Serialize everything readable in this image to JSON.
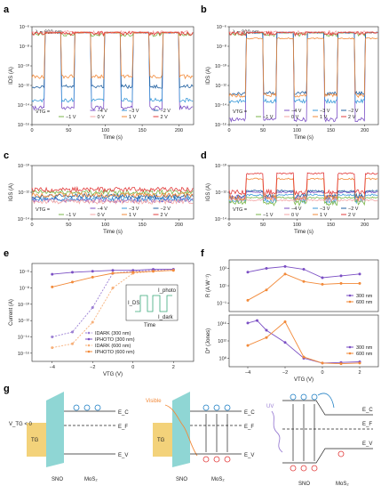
{
  "panels": {
    "a": {
      "label": "a",
      "annotation": "λ = 600 nm"
    },
    "b": {
      "label": "b",
      "annotation": "λ = 300 nm"
    },
    "c": {
      "label": "c"
    },
    "d": {
      "label": "d"
    },
    "e": {
      "label": "e"
    },
    "f": {
      "label": "f"
    },
    "g": {
      "label": "g"
    }
  },
  "chart_data": [
    {
      "panel": "a",
      "type": "line",
      "annotation": "λ = 600 nm",
      "xlabel": "Time (s)",
      "ylabel": "I_DS (A)",
      "xlim": [
        0,
        220
      ],
      "xticks": [
        "0",
        "50",
        "100",
        "150",
        "200"
      ],
      "yticks": [
        "10⁻¹⁶",
        "10⁻¹⁴",
        "10⁻¹²",
        "10⁻¹⁰",
        "10⁻⁸",
        "10⁻⁶"
      ],
      "ylim_exp": [
        -16,
        -6
      ],
      "legend_prefix": "V_TG =",
      "light_on_intervals_s": [
        [
          18,
          40
        ],
        [
          58,
          80
        ],
        [
          98,
          120
        ],
        [
          138,
          160
        ],
        [
          178,
          200
        ]
      ],
      "series": [
        {
          "name": "−4 V",
          "color": "#7b4fc4",
          "dark_log": -14.3,
          "light_log": -6.6
        },
        {
          "name": "−3 V",
          "color": "#3a9ad9",
          "dark_log": -13.5,
          "light_log": -6.6
        },
        {
          "name": "−2 V",
          "color": "#1f5fa0",
          "dark_log": -12.1,
          "light_log": -6.6
        },
        {
          "name": "−1 V",
          "color": "#7ab648",
          "dark_log": -6.8,
          "light_log": -6.6
        },
        {
          "name": "0 V",
          "color": "#f4a6a6",
          "dark_log": -6.6,
          "light_log": -6.55
        },
        {
          "name": "1 V",
          "color": "#f28a3a",
          "dark_log": -11.1,
          "light_log": -6.6
        },
        {
          "name": "2 V",
          "color": "#e23b3b",
          "dark_log": -6.7,
          "light_log": -6.6
        }
      ]
    },
    {
      "panel": "b",
      "type": "line",
      "annotation": "λ = 300 nm",
      "xlabel": "Time (s)",
      "ylabel": "I_DS (A)",
      "xlim": [
        0,
        220
      ],
      "xticks": [
        "0",
        "50",
        "100",
        "150",
        "200"
      ],
      "yticks": [
        "10⁻¹⁶",
        "10⁻¹⁴",
        "10⁻¹²",
        "10⁻¹⁰",
        "10⁻⁸",
        "10⁻⁶"
      ],
      "ylim_exp": [
        -16,
        -6
      ],
      "legend_prefix": "V_TG =",
      "light_on_intervals_s": [
        [
          25,
          50
        ],
        [
          70,
          95
        ],
        [
          115,
          140
        ],
        [
          160,
          185
        ],
        [
          200,
          220
        ]
      ],
      "series": [
        {
          "name": "−4 V",
          "color": "#7b4fc4",
          "dark_log": -15.5,
          "light_log": -6.6
        },
        {
          "name": "−3 V",
          "color": "#3a9ad9",
          "dark_log": -13.6,
          "light_log": -6.6
        },
        {
          "name": "−2 V",
          "color": "#1f5fa0",
          "dark_log": -12.8,
          "light_log": -6.6
        },
        {
          "name": "−1 V",
          "color": "#7ab648",
          "dark_log": -6.8,
          "light_log": -6.6
        },
        {
          "name": "0 V",
          "color": "#f4a6a6",
          "dark_log": -6.6,
          "light_log": -6.55
        },
        {
          "name": "1 V",
          "color": "#f28a3a",
          "dark_log": -13.0,
          "light_log": -7.2
        },
        {
          "name": "2 V",
          "color": "#e23b3b",
          "dark_log": -6.7,
          "light_log": -6.6
        }
      ]
    },
    {
      "panel": "c",
      "type": "line",
      "xlabel": "Time (s)",
      "ylabel": "I_GS (A)",
      "xlim": [
        0,
        220
      ],
      "xticks": [
        "0",
        "50",
        "100",
        "150",
        "200"
      ],
      "yticks": [
        "10⁻¹⁴",
        "10⁻¹²",
        "10⁻¹⁰"
      ],
      "ylim_exp": [
        -14,
        -10
      ],
      "legend_prefix": "V_TG =",
      "series": [
        {
          "name": "−4 V",
          "color": "#7b4fc4",
          "level_log": -12.6
        },
        {
          "name": "−3 V",
          "color": "#3a9ad9",
          "level_log": -12.5
        },
        {
          "name": "−2 V",
          "color": "#1f5fa0",
          "level_log": -12.3
        },
        {
          "name": "−1 V",
          "color": "#7ab648",
          "level_log": -12.0
        },
        {
          "name": "0 V",
          "color": "#f4a6a6",
          "level_log": -12.7
        },
        {
          "name": "1 V",
          "color": "#f28a3a",
          "level_log": -12.2
        },
        {
          "name": "2 V",
          "color": "#e23b3b",
          "level_log": -11.8
        }
      ]
    },
    {
      "panel": "d",
      "type": "line",
      "xlabel": "Time (s)",
      "ylabel": "I_GS (A)",
      "xlim": [
        0,
        220
      ],
      "xticks": [
        "0",
        "50",
        "100",
        "150",
        "200"
      ],
      "yticks": [
        "10⁻¹⁴",
        "10⁻¹²",
        "10⁻¹⁰"
      ],
      "ylim_exp": [
        -14,
        -10
      ],
      "legend_prefix": "V_TG =",
      "light_on_intervals_s": [
        [
          25,
          50
        ],
        [
          70,
          95
        ],
        [
          115,
          140
        ],
        [
          160,
          185
        ],
        [
          200,
          220
        ]
      ],
      "series": [
        {
          "name": "−4 V",
          "color": "#7b4fc4",
          "dark_log": -12.4,
          "light_log": -12.0
        },
        {
          "name": "−3 V",
          "color": "#3a9ad9",
          "dark_log": -12.6,
          "light_log": -12.2
        },
        {
          "name": "−2 V",
          "color": "#1f5fa0",
          "dark_log": -12.3,
          "light_log": -11.9
        },
        {
          "name": "−1 V",
          "color": "#7ab648",
          "dark_log": -12.8,
          "light_log": -12.4
        },
        {
          "name": "0 V",
          "color": "#f4a6a6",
          "dark_log": -12.5,
          "light_log": -12.6
        },
        {
          "name": "1 V",
          "color": "#f28a3a",
          "dark_log": -12.4,
          "light_log": -11.0
        },
        {
          "name": "2 V",
          "color": "#e23b3b",
          "dark_log": -12.0,
          "light_log": -10.6
        }
      ]
    },
    {
      "panel": "e",
      "type": "line",
      "xlabel": "V_TG (V)",
      "ylabel": "Current (A)",
      "xlim": [
        -5,
        3
      ],
      "xticks": [
        "−4",
        "−2",
        "0",
        "2"
      ],
      "x_tick_values": [
        -4,
        -2,
        0,
        2
      ],
      "yticks": [
        "10⁻¹⁶",
        "10⁻¹⁴",
        "10⁻¹²",
        "10⁻¹⁰",
        "10⁻⁸",
        "10⁻⁶"
      ],
      "ylim_exp": [
        -16,
        -6
      ],
      "inset": {
        "ylabel": "I_DS",
        "xlabel": "Time",
        "top_label": "I_photo",
        "bottom_label": "I_dark"
      },
      "series": [
        {
          "name": "I_dark (300 nm)",
          "color": "#9b7fd4",
          "dash": true,
          "x": [
            -4,
            -3,
            -2,
            -1,
            0,
            1,
            2
          ],
          "y_log": [
            -13.5,
            -13.0,
            -10.5,
            -7.0,
            -6.8,
            -6.7,
            -6.6
          ]
        },
        {
          "name": "I_photo (300 nm)",
          "color": "#7b4fc4",
          "dash": false,
          "x": [
            -4,
            -3,
            -2,
            -1,
            0,
            1,
            2
          ],
          "y_log": [
            -7.1,
            -6.9,
            -6.8,
            -6.7,
            -6.7,
            -6.6,
            -6.6
          ]
        },
        {
          "name": "I_dark (600 nm)",
          "color": "#f7b07a",
          "dash": true,
          "x": [
            -4,
            -3,
            -2,
            -1,
            0,
            1,
            2
          ],
          "y_log": [
            -14.6,
            -14.2,
            -12.0,
            -8.5,
            -7.0,
            -6.8,
            -6.7
          ]
        },
        {
          "name": "I_photo (600 nm)",
          "color": "#f28a3a",
          "dash": false,
          "x": [
            -4,
            -3,
            -2,
            -1,
            0,
            1,
            2
          ],
          "y_log": [
            -8.4,
            -7.9,
            -7.4,
            -7.0,
            -6.9,
            -6.8,
            -6.7
          ]
        }
      ]
    },
    {
      "panel": "f-top",
      "type": "line",
      "xlabel": "",
      "ylabel": "R (A W⁻¹)",
      "xlim": [
        -5,
        3
      ],
      "yticks": [
        "10⁻¹",
        "10¹",
        "10³"
      ],
      "ylim_exp": [
        -2,
        3.5
      ],
      "series": [
        {
          "name": "300 nm",
          "color": "#7b4fc4",
          "x": [
            -4,
            -3,
            -2,
            -1,
            0,
            1,
            2
          ],
          "y_log": [
            2.2,
            2.6,
            2.8,
            2.5,
            1.6,
            1.8,
            2.0
          ]
        },
        {
          "name": "600 nm",
          "color": "#f28a3a",
          "x": [
            -4,
            -3,
            -2,
            -1,
            0,
            1,
            2
          ],
          "y_log": [
            -0.8,
            0.3,
            2.0,
            1.2,
            0.9,
            1.0,
            1.0
          ]
        }
      ]
    },
    {
      "panel": "f-bottom",
      "type": "line",
      "xlabel": "V_TG (V)",
      "ylabel": "D* (Jones)",
      "xlim": [
        -5,
        3
      ],
      "xticks": [
        "−4",
        "−2",
        "0",
        "2"
      ],
      "x_tick_values": [
        -4,
        -2,
        0,
        2
      ],
      "yticks": [
        "10⁸",
        "10¹²",
        "10¹⁶"
      ],
      "ylim_exp": [
        8,
        16.5
      ],
      "series": [
        {
          "name": "300 nm",
          "color": "#7b4fc4",
          "x": [
            -4,
            -3.5,
            -3,
            -2,
            -1,
            0,
            1,
            2
          ],
          "y_log": [
            15.2,
            15.6,
            14.0,
            12.0,
            9.4,
            8.6,
            8.7,
            8.8
          ]
        },
        {
          "name": "600 nm",
          "color": "#f28a3a",
          "x": [
            -4,
            -3,
            -2,
            -1,
            0,
            1,
            2
          ],
          "y_log": [
            11.5,
            12.8,
            15.4,
            9.6,
            8.6,
            8.5,
            8.6
          ]
        }
      ]
    }
  ],
  "diagram": {
    "left": {
      "vtg": "V_TG < 0",
      "gate": "TG",
      "sno": "SNO",
      "mos2": "MoS₂",
      "ec": "E_C",
      "ef": "E_F",
      "ev": "E_V"
    },
    "middle": {
      "light": "Visible",
      "gate": "TG",
      "sno": "SNO",
      "mos2": "MoS₂",
      "ec": "E_C",
      "ef": "E_F",
      "ev": "E_V"
    },
    "right": {
      "light": "UV",
      "sno": "SNO",
      "mos2": "MoS₂",
      "ec": "E_C",
      "ef": "E_F",
      "ev": "E_V"
    },
    "colors": {
      "sno": "#8fd6d4",
      "gate": "#f3d27a",
      "electron": "#1f7fc4",
      "hole": "#e23b3b",
      "visible": "#f28a3a",
      "uv": "#9b7fd4"
    }
  }
}
